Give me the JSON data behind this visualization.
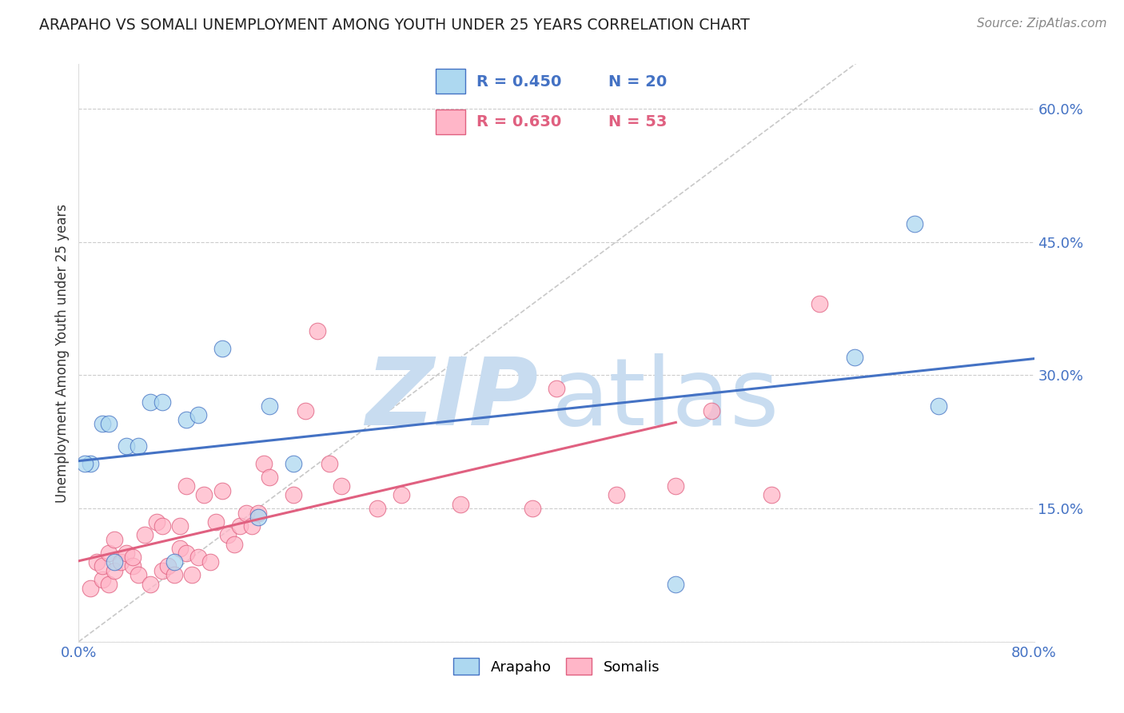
{
  "title": "ARAPAHO VS SOMALI UNEMPLOYMENT AMONG YOUTH UNDER 25 YEARS CORRELATION CHART",
  "source": "Source: ZipAtlas.com",
  "ylabel": "Unemployment Among Youth under 25 years",
  "xlim": [
    0.0,
    0.8
  ],
  "ylim": [
    0.0,
    0.65
  ],
  "yticks": [
    0.0,
    0.15,
    0.3,
    0.45,
    0.6
  ],
  "xticks": [
    0.0,
    0.1,
    0.2,
    0.3,
    0.4,
    0.5,
    0.6,
    0.7,
    0.8
  ],
  "arapaho_R": 0.45,
  "arapaho_N": 20,
  "somali_R": 0.63,
  "somali_N": 53,
  "arapaho_color": "#ADD8F0",
  "somali_color": "#FFB6C8",
  "arapaho_line_color": "#4472C4",
  "somali_line_color": "#E06080",
  "tick_color": "#4472C4",
  "grid_color": "#CCCCCC",
  "watermark_color": "#C8DCF0",
  "background_color": "#FFFFFF",
  "arapaho_x": [
    0.01,
    0.02,
    0.03,
    0.04,
    0.05,
    0.06,
    0.07,
    0.08,
    0.09,
    0.1,
    0.12,
    0.15,
    0.16,
    0.18,
    0.5,
    0.65,
    0.7,
    0.72,
    0.005,
    0.025
  ],
  "arapaho_y": [
    0.2,
    0.245,
    0.09,
    0.22,
    0.22,
    0.27,
    0.27,
    0.09,
    0.25,
    0.255,
    0.33,
    0.14,
    0.265,
    0.2,
    0.065,
    0.32,
    0.47,
    0.265,
    0.2,
    0.245
  ],
  "somali_x": [
    0.01,
    0.015,
    0.02,
    0.02,
    0.025,
    0.025,
    0.03,
    0.03,
    0.035,
    0.04,
    0.045,
    0.045,
    0.05,
    0.055,
    0.06,
    0.065,
    0.07,
    0.07,
    0.075,
    0.08,
    0.085,
    0.085,
    0.09,
    0.09,
    0.095,
    0.1,
    0.105,
    0.11,
    0.115,
    0.12,
    0.125,
    0.13,
    0.135,
    0.14,
    0.145,
    0.15,
    0.155,
    0.16,
    0.18,
    0.19,
    0.2,
    0.21,
    0.22,
    0.25,
    0.27,
    0.32,
    0.38,
    0.4,
    0.45,
    0.5,
    0.53,
    0.58,
    0.62
  ],
  "somali_y": [
    0.06,
    0.09,
    0.07,
    0.085,
    0.065,
    0.1,
    0.08,
    0.115,
    0.09,
    0.1,
    0.085,
    0.095,
    0.075,
    0.12,
    0.065,
    0.135,
    0.08,
    0.13,
    0.085,
    0.075,
    0.105,
    0.13,
    0.1,
    0.175,
    0.075,
    0.095,
    0.165,
    0.09,
    0.135,
    0.17,
    0.12,
    0.11,
    0.13,
    0.145,
    0.13,
    0.145,
    0.2,
    0.185,
    0.165,
    0.26,
    0.35,
    0.2,
    0.175,
    0.15,
    0.165,
    0.155,
    0.15,
    0.285,
    0.165,
    0.175,
    0.26,
    0.165,
    0.38
  ]
}
